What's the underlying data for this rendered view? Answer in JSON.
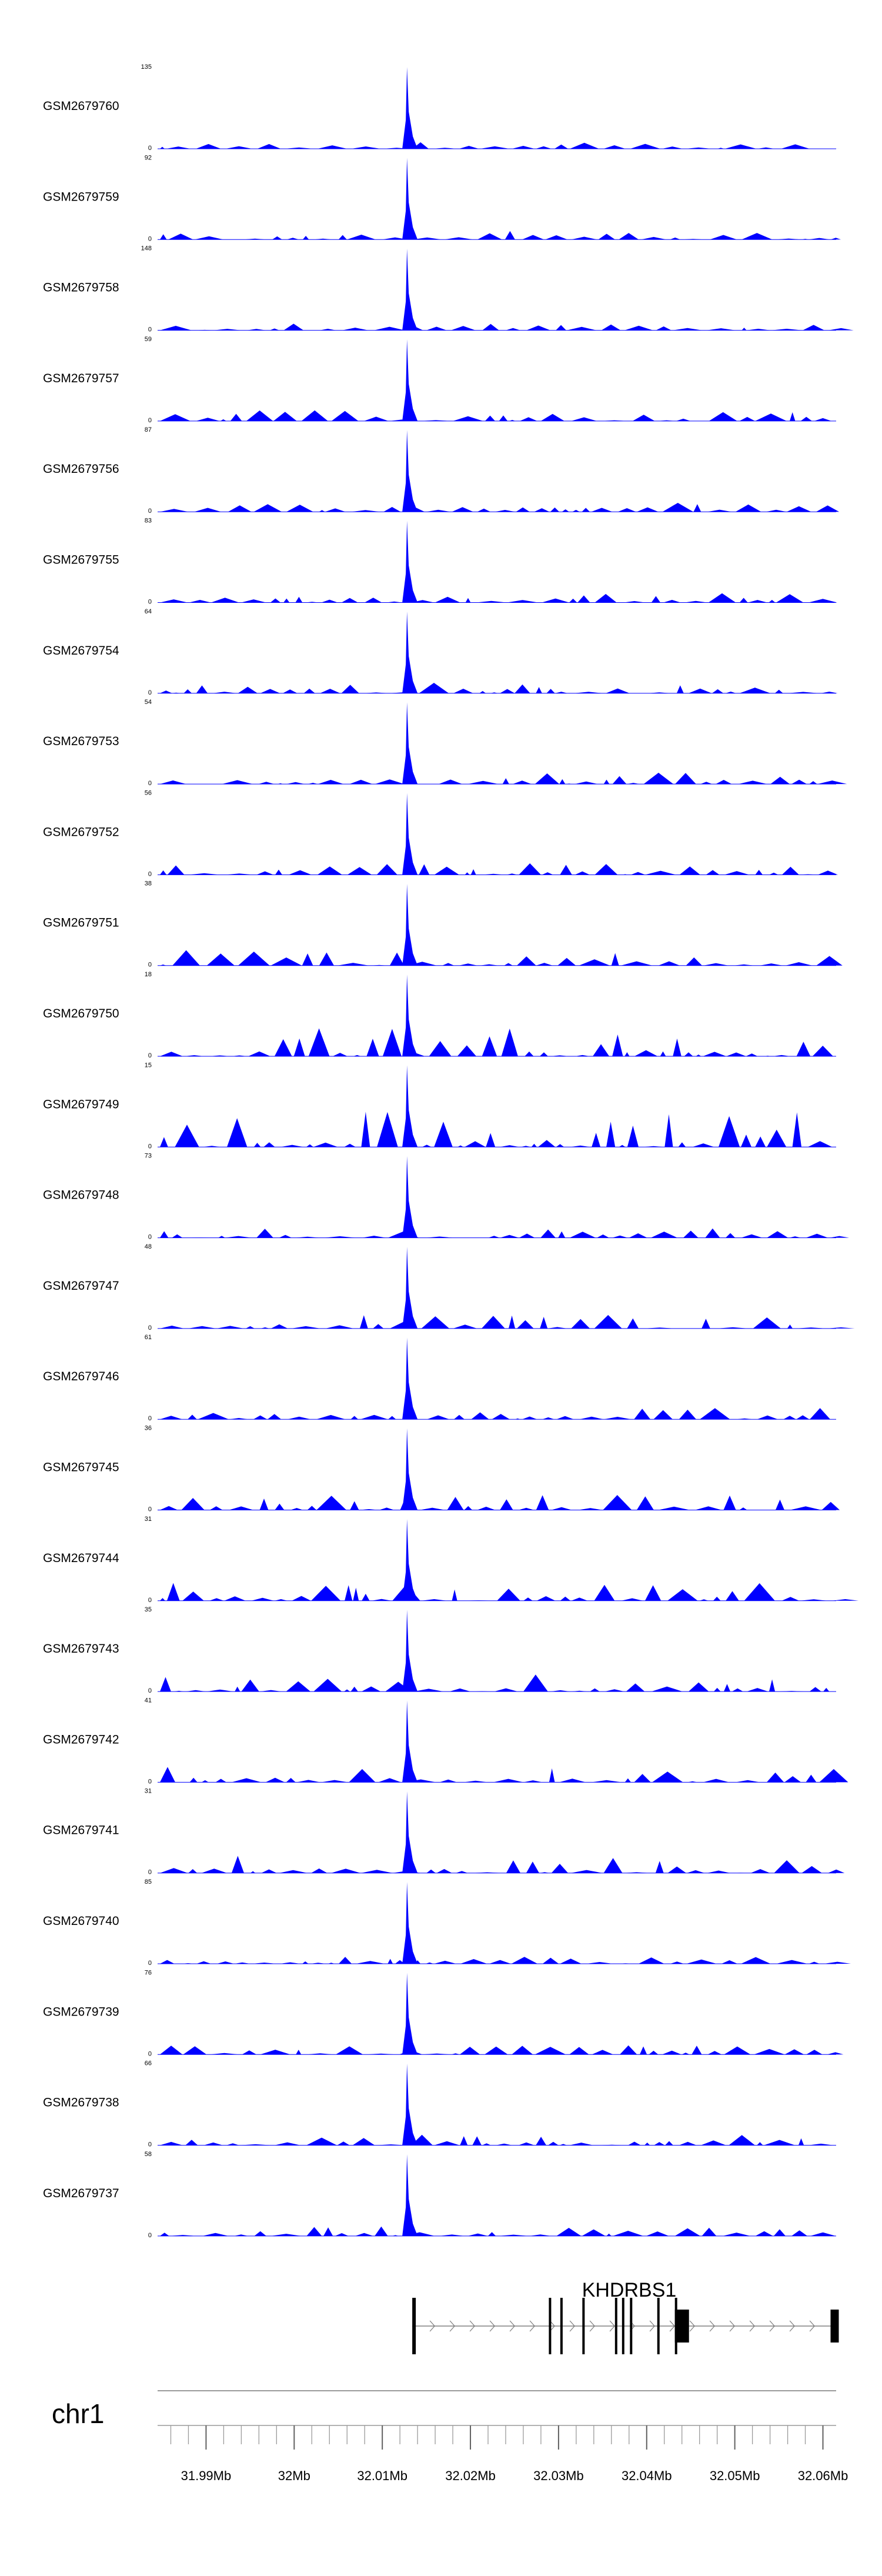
{
  "chart_data": {
    "type": "area",
    "chromosome": "chr1",
    "gene": "KHDRBS1",
    "region_mb": [
      31.9845,
      32.0615
    ],
    "x_ticks": [
      {
        "pos": 31.99,
        "label": "31.99Mb"
      },
      {
        "pos": 32.0,
        "label": "32Mb"
      },
      {
        "pos": 32.01,
        "label": "32.01Mb"
      },
      {
        "pos": 32.02,
        "label": "32.02Mb"
      },
      {
        "pos": 32.03,
        "label": "32.03Mb"
      },
      {
        "pos": 32.04,
        "label": "32.04Mb"
      },
      {
        "pos": 32.05,
        "label": "32.05Mb"
      },
      {
        "pos": 32.06,
        "label": "32.06Mb"
      }
    ],
    "series": [
      {
        "name": "GSM2679760",
        "ymax": 135,
        "ymin": 0
      },
      {
        "name": "GSM2679759",
        "ymax": 92,
        "ymin": 0
      },
      {
        "name": "GSM2679758",
        "ymax": 148,
        "ymin": 0
      },
      {
        "name": "GSM2679757",
        "ymax": 59,
        "ymin": 0
      },
      {
        "name": "GSM2679756",
        "ymax": 87,
        "ymin": 0
      },
      {
        "name": "GSM2679755",
        "ymax": 83,
        "ymin": 0
      },
      {
        "name": "GSM2679754",
        "ymax": 64,
        "ymin": 0
      },
      {
        "name": "GSM2679753",
        "ymax": 54,
        "ymin": 0
      },
      {
        "name": "GSM2679752",
        "ymax": 56,
        "ymin": 0
      },
      {
        "name": "GSM2679751",
        "ymax": 38,
        "ymin": 0
      },
      {
        "name": "GSM2679750",
        "ymax": 18,
        "ymin": 0
      },
      {
        "name": "GSM2679749",
        "ymax": 15,
        "ymin": 0
      },
      {
        "name": "GSM2679748",
        "ymax": 73,
        "ymin": 0
      },
      {
        "name": "GSM2679747",
        "ymax": 48,
        "ymin": 0
      },
      {
        "name": "GSM2679746",
        "ymax": 61,
        "ymin": 0
      },
      {
        "name": "GSM2679745",
        "ymax": 36,
        "ymin": 0
      },
      {
        "name": "GSM2679744",
        "ymax": 31,
        "ymin": 0
      },
      {
        "name": "GSM2679743",
        "ymax": 35,
        "ymin": 0
      },
      {
        "name": "GSM2679742",
        "ymax": 41,
        "ymin": 0
      },
      {
        "name": "GSM2679741",
        "ymax": 31,
        "ymin": 0
      },
      {
        "name": "GSM2679740",
        "ymax": 85,
        "ymin": 0
      },
      {
        "name": "GSM2679739",
        "ymax": 76,
        "ymin": 0
      },
      {
        "name": "GSM2679738",
        "ymax": 66,
        "ymin": 0
      },
      {
        "name": "GSM2679737",
        "ymax": 58,
        "ymin": 0
      }
    ],
    "peak_position_mb": 32.0128,
    "fill_color": "#0000ff",
    "transcript": {
      "start_mb": 32.0134,
      "end_mb": 32.0614,
      "strand": "+",
      "exons_mb": [
        32.0134,
        32.0289,
        32.0302,
        32.0327,
        32.0364,
        32.0372,
        32.0381,
        32.0412,
        32.0432
      ]
    }
  }
}
